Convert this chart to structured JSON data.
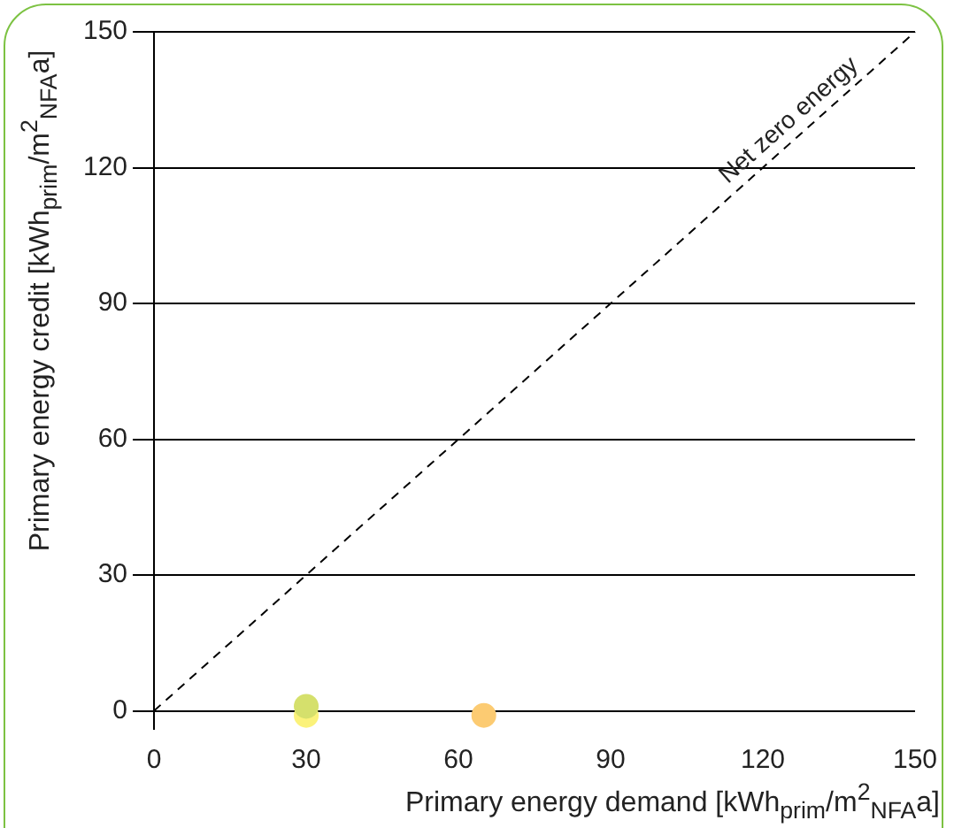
{
  "chart_data": {
    "type": "scatter",
    "xlabel": "Primary energy demand [kWh$_{prim}$/m$^{2}$$_{NFA}$a]",
    "ylabel": "Primary energy credit [kWh$_{prim}$/m$^{2}$$_{NFA}$a]",
    "series": [
      {
        "type": "line",
        "name": "Net zero energy",
        "color": "#000000",
        "line_style": "dashed",
        "marker": "none",
        "x": [
          0,
          150
        ],
        "values": [
          0,
          150
        ]
      },
      {
        "marker": "circle",
        "x": [
          30,
          30,
          65
        ],
        "values": [
          -1,
          1,
          -1
        ],
        "colors": [
          "#fbf27a",
          "#d5e06c",
          "#fccb72"
        ]
      }
    ],
    "xlim": [
      0,
      150
    ],
    "xticks": [
      0,
      30,
      60,
      90,
      120,
      150
    ],
    "ylim": [
      -4,
      150
    ],
    "yticks": [
      0,
      30,
      60,
      90,
      120,
      150
    ],
    "grid": "y",
    "legend": false
  }
}
